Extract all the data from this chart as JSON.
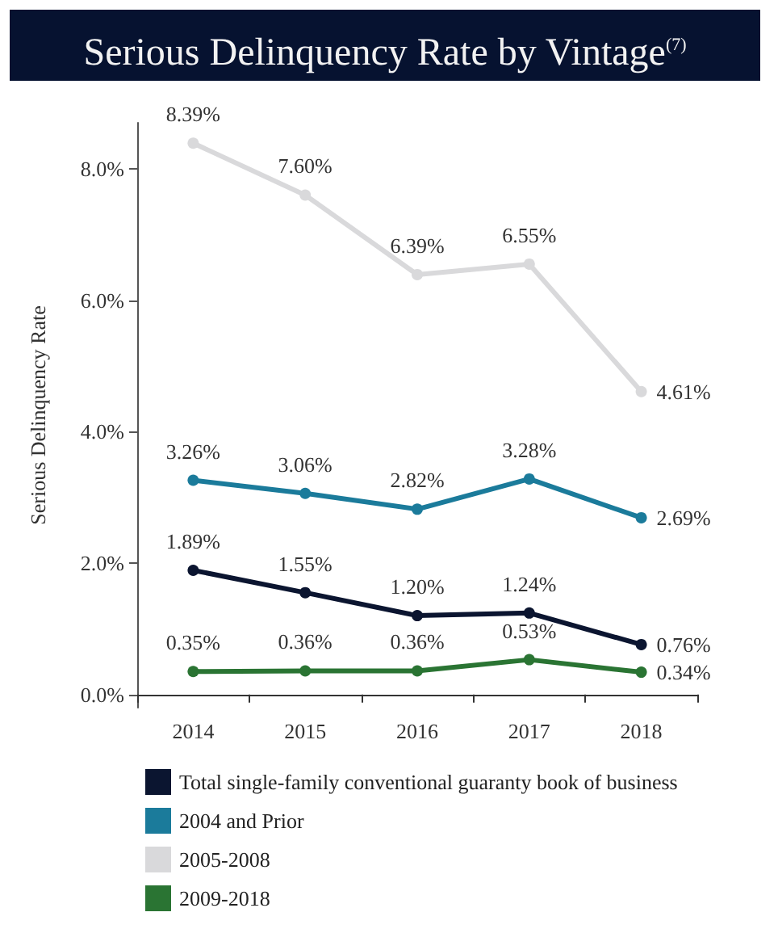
{
  "chart_data": {
    "type": "line",
    "title": "Serious Delinquency Rate by Vintage$^{(7)}$",
    "ylabel": "Serious Delinquency Rate",
    "categories": [
      "2014",
      "2015",
      "2016",
      "2017",
      "2018"
    ],
    "series": [
      {
        "name": "Total single-family conventional guaranty book of business",
        "color": "#0b1530",
        "values": [
          1.89,
          1.55,
          1.2,
          1.24,
          0.76
        ],
        "value_labels": [
          "1.89%",
          "1.55%",
          "1.20%",
          "1.24%",
          "0.76%"
        ]
      },
      {
        "name": "2004 and Prior",
        "color": "#1b7b9b",
        "values": [
          3.26,
          3.06,
          2.82,
          3.28,
          2.69
        ],
        "value_labels": [
          "3.26%",
          "3.06%",
          "2.82%",
          "3.28%",
          "2.69%"
        ]
      },
      {
        "name": "2005-2008",
        "color": "#d9d9db",
        "values": [
          8.39,
          7.6,
          6.39,
          6.55,
          4.61
        ],
        "value_labels": [
          "8.39%",
          "7.60%",
          "6.39%",
          "6.55%",
          "4.61%"
        ]
      },
      {
        "name": "2009-2018",
        "color": "#2a7433",
        "values": [
          0.35,
          0.36,
          0.36,
          0.53,
          0.34
        ],
        "value_labels": [
          "0.35%",
          "0.36%",
          "0.36%",
          "0.53%",
          "0.34%"
        ]
      }
    ],
    "ylim": [
      -0.2,
      8.7
    ],
    "yticks": [
      {
        "value": 0,
        "label": "0.0%"
      },
      {
        "value": 2,
        "label": "2.0%"
      },
      {
        "value": 4,
        "label": "4.0%"
      },
      {
        "value": 6,
        "label": "6.0%"
      },
      {
        "value": 8,
        "label": "8.0%"
      }
    ],
    "grid": false,
    "legend": "bottom left",
    "marker": "circle",
    "line_style": "solid"
  }
}
